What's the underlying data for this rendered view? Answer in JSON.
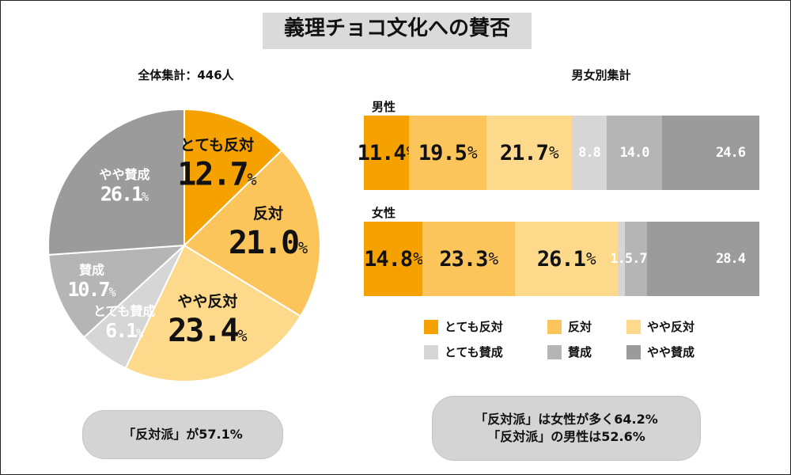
{
  "title": "義理チョコ文化への賛否",
  "overall": {
    "subtitle": "全体集計：446人",
    "note": "「反対派」が57.1%"
  },
  "gender": {
    "subtitle": "男女別集計",
    "male_label": "男性",
    "female_label": "女性",
    "note_line1": "「反対派」は女性が多く64.2%",
    "note_line2": "「反対派」の男性は52.6%"
  },
  "colors": {
    "とても反対": "#f5a200",
    "反対": "#fcc55c",
    "やや反対": "#fdd98b",
    "とても賛成": "#d6d6d6",
    "賛成": "#b5b5b5",
    "やや賛成": "#9b9b9b"
  },
  "legend": [
    {
      "label": "とても反対",
      "color": "#f5a200"
    },
    {
      "label": "反対",
      "color": "#fcc55c"
    },
    {
      "label": "やや反対",
      "color": "#fdd98b"
    },
    {
      "label": "とても賛成",
      "color": "#d6d6d6"
    },
    {
      "label": "賛成",
      "color": "#b5b5b5"
    },
    {
      "label": "やや賛成",
      "color": "#9b9b9b"
    }
  ],
  "chart_data": [
    {
      "type": "pie",
      "title": "全体集計：446人",
      "categories": [
        "とても反対",
        "反対",
        "やや反対",
        "とても賛成",
        "賛成",
        "やや賛成"
      ],
      "values": [
        12.7,
        21.0,
        23.4,
        6.1,
        10.7,
        26.1
      ],
      "labels": [
        "12.7%",
        "21.0%",
        "23.4%",
        "6.1%",
        "10.7%",
        "26.1%"
      ]
    },
    {
      "type": "bar",
      "orientation": "horizontal",
      "stacked": true,
      "title": "男女別集計",
      "categories": [
        "男性",
        "女性"
      ],
      "series": [
        {
          "name": "とても反対",
          "values": [
            11.4,
            14.8
          ],
          "labels": [
            "11.4%",
            "14.8%"
          ]
        },
        {
          "name": "反対",
          "values": [
            19.5,
            23.3
          ],
          "labels": [
            "19.5%",
            "23.3%"
          ]
        },
        {
          "name": "やや反対",
          "values": [
            21.7,
            26.1
          ],
          "labels": [
            "21.7%",
            "26.1%"
          ]
        },
        {
          "name": "とても賛成",
          "values": [
            8.8,
            1.7
          ],
          "labels": [
            "8.8",
            "1.7"
          ]
        },
        {
          "name": "賛成",
          "values": [
            14.0,
            5.7
          ],
          "labels": [
            "14.0",
            "5.7"
          ]
        },
        {
          "name": "やや賛成",
          "values": [
            24.6,
            28.4
          ],
          "labels": [
            "24.6",
            "28.4"
          ]
        }
      ]
    }
  ]
}
